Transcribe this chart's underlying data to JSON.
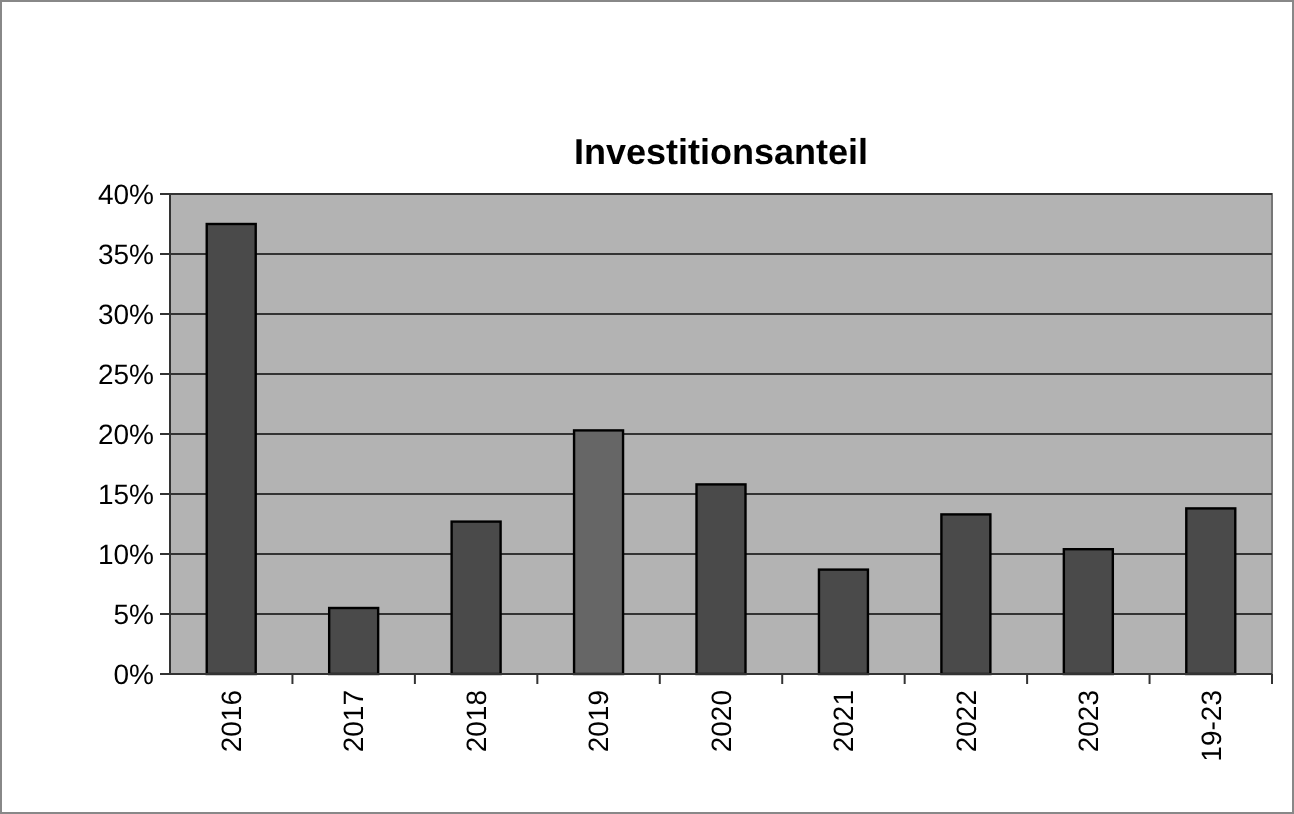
{
  "chart_data": {
    "type": "bar",
    "title": "Investitionsanteil",
    "categories": [
      "2016",
      "2017",
      "2018",
      "2019",
      "2020",
      "2021",
      "2022",
      "2023",
      "19-23"
    ],
    "values": [
      37.5,
      5.5,
      12.7,
      20.3,
      15.8,
      8.7,
      13.3,
      10.4,
      13.8
    ],
    "colors": [
      "#4a4a4a",
      "#4a4a4a",
      "#4a4a4a",
      "#666666",
      "#4a4a4a",
      "#4a4a4a",
      "#4a4a4a",
      "#4a4a4a",
      "#4a4a4a"
    ],
    "ylim": [
      0,
      40
    ],
    "yticks": [
      {
        "value": 0,
        "label": "0%"
      },
      {
        "value": 5,
        "label": "5%"
      },
      {
        "value": 10,
        "label": "10%"
      },
      {
        "value": 15,
        "label": "15%"
      },
      {
        "value": 20,
        "label": "20%"
      },
      {
        "value": 25,
        "label": "25%"
      },
      {
        "value": 30,
        "label": "30%"
      },
      {
        "value": 35,
        "label": "35%"
      },
      {
        "value": 40,
        "label": "40%"
      }
    ],
    "grid": "y"
  }
}
